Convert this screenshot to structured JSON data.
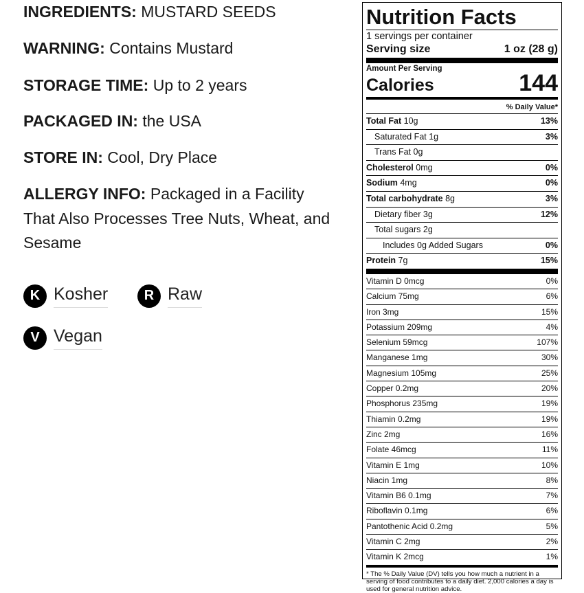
{
  "info": [
    {
      "label": "INGREDIENTS:",
      "value": "MUSTARD SEEDS"
    },
    {
      "label": "WARNING:",
      "value": "Contains Mustard"
    },
    {
      "label": "STORAGE TIME:",
      "value": "Up to 2 years"
    },
    {
      "label": "PACKAGED IN:",
      "value": "the USA"
    },
    {
      "label": "STORE IN:",
      "value": "Cool, Dry Place"
    }
  ],
  "allergy": {
    "label": "ALLERGY INFO:",
    "value": "Packaged in a Facility That Also Processes Tree Nuts, Wheat, and Sesame"
  },
  "badges": [
    {
      "letter": "K",
      "label": "Kosher"
    },
    {
      "letter": "R",
      "label": "Raw"
    },
    {
      "letter": "V",
      "label": "Vegan"
    }
  ],
  "nutrition": {
    "title": "Nutrition Facts",
    "servings": "1 servings per container",
    "serving_size_label": "Serving size",
    "serving_size_value": "1 oz (28 g)",
    "amount_per_serving": "Amount Per Serving",
    "calories_label": "Calories",
    "calories_value": "144",
    "dv_header": "% Daily Value*",
    "nutrients": [
      {
        "name": "Total Fat",
        "amount": "10g",
        "dv": "13%"
      },
      {
        "name": "Saturated Fat",
        "amount": "1g",
        "dv": "3%"
      },
      {
        "name": "Trans Fat",
        "amount": "0g",
        "dv": ""
      },
      {
        "name": "Cholesterol",
        "amount": "0mg",
        "dv": "0%"
      },
      {
        "name": "Sodium",
        "amount": "4mg",
        "dv": "0%"
      },
      {
        "name": "Total carbohydrate",
        "amount": "8g",
        "dv": "3%"
      },
      {
        "name": "Dietary fiber",
        "amount": "3g",
        "dv": "12%"
      },
      {
        "name": "Total sugars",
        "amount": "2g",
        "dv": ""
      },
      {
        "name": "Includes 0g Added Sugars",
        "amount": "",
        "dv": "0%"
      },
      {
        "name": "Protein",
        "amount": "7g",
        "dv": "15%"
      }
    ],
    "vitamins": [
      {
        "name": "Vitamin D 0mcg",
        "dv": "0%"
      },
      {
        "name": "Calcium 75mg",
        "dv": "6%"
      },
      {
        "name": "Iron 3mg",
        "dv": "15%"
      },
      {
        "name": "Potassium 209mg",
        "dv": "4%"
      },
      {
        "name": "Selenium 59mcg",
        "dv": "107%"
      },
      {
        "name": "Manganese 1mg",
        "dv": "30%"
      },
      {
        "name": "Magnesium 105mg",
        "dv": "25%"
      },
      {
        "name": "Copper 0.2mg",
        "dv": "20%"
      },
      {
        "name": "Phosphorus 235mg",
        "dv": "19%"
      },
      {
        "name": "Thiamin 0.2mg",
        "dv": "19%"
      },
      {
        "name": "Zinc 2mg",
        "dv": "16%"
      },
      {
        "name": "Folate 46mcg",
        "dv": "11%"
      },
      {
        "name": "Vitamin E 1mg",
        "dv": "10%"
      },
      {
        "name": "Niacin 1mg",
        "dv": "8%"
      },
      {
        "name": "Vitamin B6 0.1mg",
        "dv": "7%"
      },
      {
        "name": "Riboflavin 0.1mg",
        "dv": "6%"
      },
      {
        "name": "Pantothenic Acid 0.2mg",
        "dv": "5%"
      },
      {
        "name": "Vitamin C 2mg",
        "dv": "2%"
      },
      {
        "name": "Vitamin K 2mcg",
        "dv": "1%"
      }
    ],
    "footnote": "* The % Daily Value (DV) tells you how much a nutrient in a serving of food contributes to a daily diet. 2,000 calories a day is used for general nutrition advice."
  }
}
